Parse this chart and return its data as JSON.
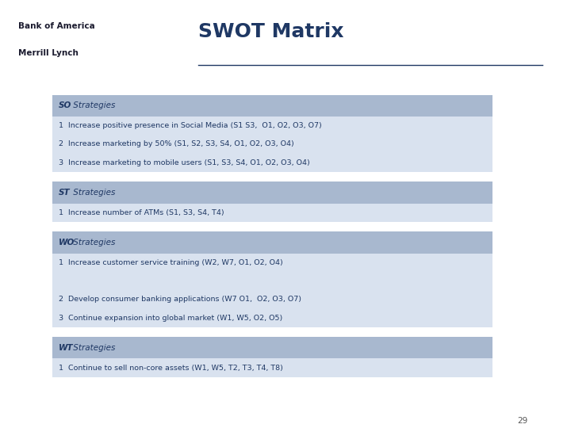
{
  "title": "SWOT Matrix",
  "title_color": "#1F3864",
  "title_fontsize": 18,
  "bg_color": "#FFFFFF",
  "header_bg": "#A8B8CF",
  "row_bg": "#D9E2EF",
  "text_color": "#1F3864",
  "left_panel_color": "#B0BEC9",
  "right_bar_color": "#2B5BA8",
  "page_number": "29",
  "logo_line1": "Bank of America",
  "logo_line2": "Merrill Lynch",
  "sections": [
    {
      "header_bold": "SO",
      "header_rest": " Strategies",
      "rows": [
        "1  Increase positive presence in Social Media (S1 S3,  O1, O2, O3, O7)",
        "2  Increase marketing by 50% (S1, S2, S3, S4, O1, O2, O3, O4)",
        "3  Increase marketing to mobile users (S1, S3, S4, O1, O2, O3, O4)"
      ]
    },
    {
      "header_bold": "ST",
      "header_rest": " Strategies",
      "rows": [
        "1  Increase number of ATMs (S1, S3, S4, T4)"
      ]
    },
    {
      "header_bold": "WO",
      "header_rest": " Strategies",
      "rows": [
        "1  Increase customer service training (W2, W7, O1, O2, O4)",
        "",
        "2  Develop consumer banking applications (W7 O1,  O2, O3, O7)",
        "3  Continue expansion into global market (W1, W5, O2, O5)"
      ]
    },
    {
      "header_bold": "WT",
      "header_rest": " Strategies",
      "rows": [
        "1  Continue to sell non-core assets (W1, W5, T2, T3, T4, T8)"
      ]
    }
  ]
}
